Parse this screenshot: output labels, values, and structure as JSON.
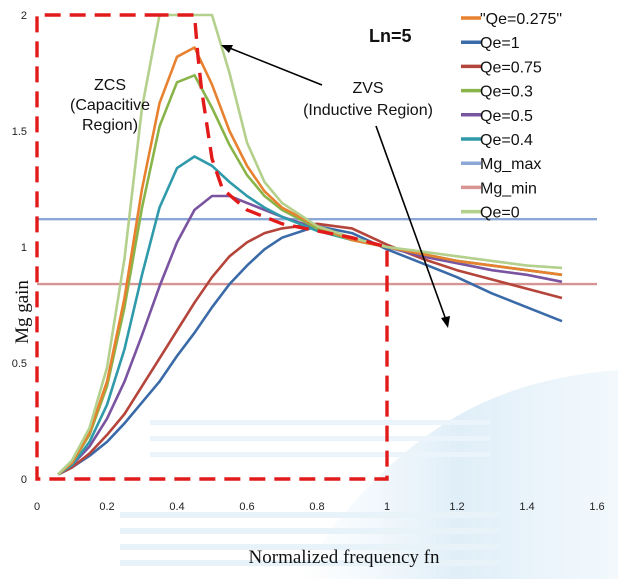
{
  "chart_data": {
    "type": "line",
    "xlabel": "Normalized frequency fn",
    "ylabel": "Mg gain",
    "xlim": [
      0,
      1.6
    ],
    "ylim": [
      0,
      2
    ],
    "x_ticks": [
      "0",
      "0.2",
      "0.4",
      "0.6",
      "0.8",
      "1",
      "1.2",
      "1.4",
      "1.6"
    ],
    "y_ticks": [
      "0",
      "0.5",
      "1",
      "1.5",
      "2"
    ],
    "legend_position": "right",
    "annotations": {
      "ln": "Ln=5",
      "zcs": [
        "ZCS",
        "(Capacitive",
        "Region)"
      ],
      "zvs": [
        "ZVS",
        "(Inductive  Region)"
      ]
    },
    "x": [
      0.06,
      0.1,
      0.15,
      0.2,
      0.25,
      0.3,
      0.35,
      0.4,
      0.45,
      0.5,
      0.55,
      0.6,
      0.65,
      0.7,
      0.8,
      0.9,
      1.0,
      1.1,
      1.2,
      1.3,
      1.4,
      1.5
    ],
    "series": [
      {
        "name": "\"Qe=0.275\"",
        "color": "#e8812f",
        "values": [
          0.02,
          0.07,
          0.2,
          0.42,
          0.78,
          1.25,
          1.62,
          1.82,
          1.86,
          1.7,
          1.5,
          1.35,
          1.24,
          1.17,
          1.09,
          1.03,
          1.0,
          0.97,
          0.94,
          0.92,
          0.9,
          0.88
        ]
      },
      {
        "name": "Qe=1",
        "color": "#3a6aa8",
        "values": [
          0.02,
          0.05,
          0.1,
          0.16,
          0.24,
          0.33,
          0.42,
          0.53,
          0.63,
          0.74,
          0.84,
          0.92,
          0.99,
          1.04,
          1.09,
          1.06,
          0.99,
          0.93,
          0.87,
          0.8,
          0.74,
          0.68
        ]
      },
      {
        "name": "Qe=0.75",
        "color": "#b5443b",
        "values": [
          0.02,
          0.05,
          0.11,
          0.19,
          0.28,
          0.4,
          0.52,
          0.64,
          0.76,
          0.87,
          0.96,
          1.02,
          1.06,
          1.08,
          1.1,
          1.08,
          1.01,
          0.95,
          0.9,
          0.86,
          0.82,
          0.78
        ]
      },
      {
        "name": "Qe=0.3",
        "color": "#89b44a",
        "values": [
          0.02,
          0.07,
          0.19,
          0.4,
          0.74,
          1.17,
          1.52,
          1.71,
          1.74,
          1.6,
          1.44,
          1.31,
          1.22,
          1.16,
          1.08,
          1.03,
          1.0,
          0.97,
          0.94,
          0.92,
          0.9,
          0.88
        ]
      },
      {
        "name": "Qe=0.5",
        "color": "#7a54a0",
        "values": [
          0.02,
          0.06,
          0.14,
          0.26,
          0.42,
          0.62,
          0.83,
          1.02,
          1.16,
          1.22,
          1.22,
          1.19,
          1.16,
          1.13,
          1.08,
          1.03,
          1.0,
          0.96,
          0.93,
          0.9,
          0.88,
          0.85
        ]
      },
      {
        "name": "Qe=0.4",
        "color": "#2f9aaa",
        "values": [
          0.02,
          0.06,
          0.16,
          0.32,
          0.56,
          0.88,
          1.17,
          1.34,
          1.39,
          1.35,
          1.28,
          1.22,
          1.17,
          1.13,
          1.07,
          1.03,
          1.0,
          0.97,
          0.94,
          0.92,
          0.9,
          0.88
        ]
      },
      {
        "name": "Mg_max",
        "color": "#8aa7d6",
        "values": [
          1.12,
          1.12,
          1.12,
          1.12,
          1.12,
          1.12,
          1.12,
          1.12,
          1.12,
          1.12,
          1.12,
          1.12,
          1.12,
          1.12,
          1.12,
          1.12,
          1.12,
          1.12,
          1.12,
          1.12,
          1.12,
          1.12
        ],
        "full_width": true
      },
      {
        "name": "Mg_min",
        "color": "#d69593",
        "values": [
          0.84,
          0.84,
          0.84,
          0.84,
          0.84,
          0.84,
          0.84,
          0.84,
          0.84,
          0.84,
          0.84,
          0.84,
          0.84,
          0.84,
          0.84,
          0.84,
          0.84,
          0.84,
          0.84,
          0.84,
          0.84,
          0.84
        ],
        "full_width": true
      },
      {
        "name": "Qe=0",
        "color": "#b3d08c",
        "values": [
          0.02,
          0.08,
          0.22,
          0.48,
          0.95,
          1.6,
          2.0,
          2.0,
          2.0,
          2.0,
          1.75,
          1.45,
          1.28,
          1.19,
          1.09,
          1.04,
          1.0,
          0.98,
          0.96,
          0.94,
          0.92,
          0.91
        ]
      }
    ],
    "boundary_line": {
      "color": "#e21a1a",
      "x": [
        0.33,
        0.33,
        0.45,
        0.46,
        0.47,
        0.5,
        0.53,
        0.6,
        0.7,
        0.8,
        0.9,
        1.0,
        1.0,
        0.0,
        0.0,
        0.33
      ],
      "y": [
        2.0,
        2.0,
        2.0,
        1.82,
        1.68,
        1.38,
        1.25,
        1.16,
        1.1,
        1.07,
        1.04,
        1.0,
        0.0,
        0.0,
        2.0,
        2.0
      ]
    }
  }
}
